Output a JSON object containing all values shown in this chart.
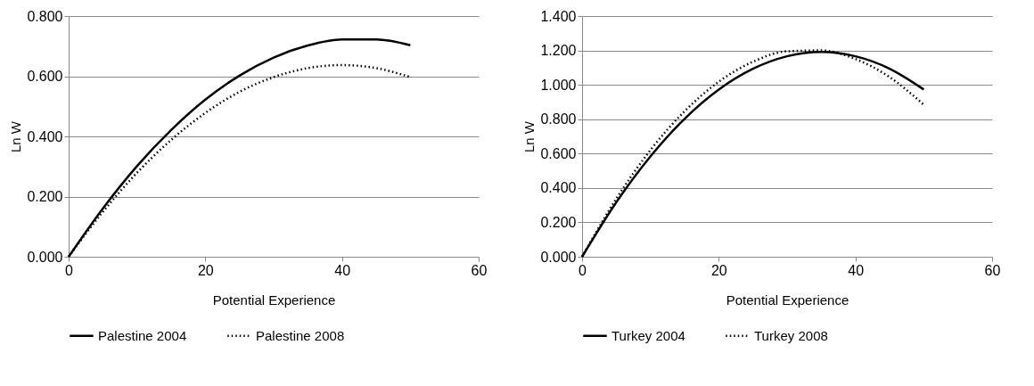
{
  "chart_data": [
    {
      "type": "line",
      "xlabel": "Potential Experience",
      "ylabel": "Ln W",
      "x": [
        0,
        5,
        10,
        15,
        20,
        25,
        30,
        35,
        40,
        45,
        50
      ],
      "series": [
        {
          "name": "Palestine 2004",
          "color": "#000000",
          "line_style": "solid",
          "values": [
            0,
            0.16,
            0.301,
            0.421,
            0.522,
            0.602,
            0.662,
            0.702,
            0.722,
            0.722,
            0.703
          ]
        },
        {
          "name": "Palestine 2008",
          "color": "#000000",
          "line_style": "dotted",
          "values": [
            0,
            0.149,
            0.279,
            0.388,
            0.478,
            0.548,
            0.597,
            0.627,
            0.637,
            0.627,
            0.597
          ]
        }
      ],
      "xlim": [
        0,
        60
      ],
      "xticks": [
        0,
        20,
        40,
        60
      ],
      "ylim": [
        0,
        0.8
      ],
      "yticks": [
        {
          "value": 0,
          "label": "0.000"
        },
        {
          "value": 0.2,
          "label": "0.200"
        },
        {
          "value": 0.4,
          "label": "0.400"
        },
        {
          "value": 0.6,
          "label": "0.600"
        },
        {
          "value": 0.8,
          "label": "0.800"
        }
      ],
      "grid": "y",
      "legend": "bottom",
      "marker": "none"
    },
    {
      "type": "line",
      "xlabel": "Potential Experience",
      "ylabel": "Ln W",
      "x": [
        0,
        5,
        10,
        15,
        20,
        25,
        30,
        35,
        40,
        45,
        50
      ],
      "series": [
        {
          "name": "Turkey 2004",
          "color": "#000000",
          "line_style": "solid",
          "values": [
            0,
            0.316,
            0.583,
            0.802,
            0.972,
            1.093,
            1.166,
            1.191,
            1.166,
            1.094,
            0.973
          ]
        },
        {
          "name": "Turkey 2008",
          "color": "#000000",
          "line_style": "dotted",
          "values": [
            0,
            0.337,
            0.62,
            0.846,
            1.018,
            1.134,
            1.195,
            1.2,
            1.15,
            1.045,
            0.884
          ]
        }
      ],
      "xlim": [
        0,
        60
      ],
      "xticks": [
        0,
        20,
        40,
        60
      ],
      "ylim": [
        0,
        1.4
      ],
      "yticks": [
        {
          "value": 0,
          "label": "0.000"
        },
        {
          "value": 0.2,
          "label": "0.200"
        },
        {
          "value": 0.4,
          "label": "0.400"
        },
        {
          "value": 0.6,
          "label": "0.600"
        },
        {
          "value": 0.8,
          "label": "0.800"
        },
        {
          "value": 1.0,
          "label": "1.000"
        },
        {
          "value": 1.2,
          "label": "1.200"
        },
        {
          "value": 1.4,
          "label": "1.400"
        }
      ],
      "grid": "y",
      "legend": "bottom",
      "marker": "none"
    }
  ]
}
